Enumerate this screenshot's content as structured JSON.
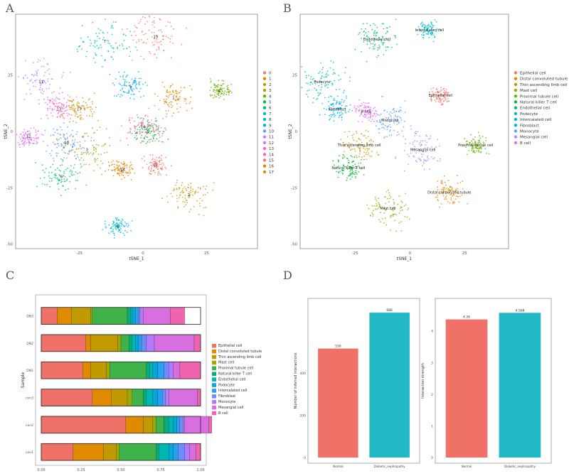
{
  "panel_labels": {
    "a": "A",
    "b": "B",
    "c": "C",
    "d": "D"
  },
  "palette": [
    "#F8766D",
    "#E58700",
    "#C99800",
    "#A3A500",
    "#6BB100",
    "#00BA38",
    "#00BF7D",
    "#00C0AF",
    "#00BCD8",
    "#00B0F6",
    "#619CFF",
    "#B983FF",
    "#E76BF3",
    "#FD61D1",
    "#FF67A4",
    "#F8766D",
    "#E58700",
    "#C99800"
  ],
  "chart_data": [
    {
      "type": "scatter",
      "id": "A",
      "xlabel": "tSNE_1",
      "ylabel": "tSNE_2",
      "xticks": [
        "-25",
        "0",
        "25"
      ],
      "yticks": [
        "25",
        "0",
        "-25",
        "-50"
      ],
      "legend_position": "right",
      "legend": [
        "0",
        "1",
        "2",
        "3",
        "4",
        "5",
        "6",
        "7",
        "8",
        "9",
        "10",
        "11",
        "12",
        "13",
        "14",
        "15",
        "16",
        "17"
      ],
      "cluster_labels": [
        "0",
        "1",
        "2",
        "3",
        "4",
        "5",
        "6",
        "7",
        "8",
        "9",
        "10",
        "11",
        "12",
        "13",
        "14",
        "15",
        "16",
        "17"
      ],
      "cluster_centers": [
        {
          "label": "0",
          "x": 5,
          "y": -15
        },
        {
          "label": "1",
          "x": 12,
          "y": 15
        },
        {
          "label": "2",
          "x": 18,
          "y": -28
        },
        {
          "label": "3",
          "x": -22,
          "y": -8
        },
        {
          "label": "4",
          "x": 30,
          "y": 18
        },
        {
          "label": "5",
          "x": 2,
          "y": 0
        },
        {
          "label": "6",
          "x": -32,
          "y": -20
        },
        {
          "label": "7",
          "x": -15,
          "y": 40
        },
        {
          "label": "8",
          "x": -10,
          "y": -42
        },
        {
          "label": "9",
          "x": -5,
          "y": 20
        },
        {
          "label": "10",
          "x": -30,
          "y": -5
        },
        {
          "label": "11",
          "x": -40,
          "y": 22
        },
        {
          "label": "12",
          "x": -45,
          "y": -2
        },
        {
          "label": "13",
          "x": -33,
          "y": 10
        },
        {
          "label": "14",
          "x": 0,
          "y": 2
        },
        {
          "label": "15",
          "x": 5,
          "y": 42
        },
        {
          "label": "16",
          "x": -8,
          "y": -17
        },
        {
          "label": "17",
          "x": -25,
          "y": 10
        }
      ]
    },
    {
      "type": "scatter",
      "id": "B",
      "xlabel": "tSNE_1",
      "ylabel": "tSNE_2",
      "xticks": [
        "-25",
        "0",
        "25"
      ],
      "yticks": [
        "25",
        "0",
        "-25",
        "-50"
      ],
      "legend_position": "right",
      "legend": [
        "Epithelial cell",
        "Distal convoluted tubule",
        "Thin ascending limb cell",
        "Mast cell",
        "Proximal tubule cell",
        "Natural killer T cell",
        "Endothelial cell",
        "Podocyte",
        "Intercalated cell",
        "Fibroblast",
        "Monocyte",
        "Mesangial cell",
        "B cell"
      ],
      "cell_labels": [
        "Epithelial cell",
        "Distal convoluted tubule",
        "Thin ascending limb cell",
        "Mast cell",
        "Proximal tubule cell",
        "Natural killer T cell",
        "Endothelial cell",
        "Podocyte",
        "Intercalated cell",
        "Fibroblast",
        "Monocyte",
        "Mesangial cell",
        "B cell"
      ],
      "cell_centers": [
        {
          "label": "Epithelial cell",
          "x": 14,
          "y": 16
        },
        {
          "label": "Distal convoluted tubule",
          "x": 18,
          "y": -27
        },
        {
          "label": "Thin ascending limb cell",
          "x": -23,
          "y": -6
        },
        {
          "label": "Mast cell",
          "x": -10,
          "y": -34
        },
        {
          "label": "Proximal tubule cell",
          "x": 30,
          "y": -6
        },
        {
          "label": "Natural killer T cell",
          "x": -28,
          "y": -16
        },
        {
          "label": "Endothelial cell",
          "x": -15,
          "y": 41
        },
        {
          "label": "Podocyte",
          "x": -40,
          "y": 22
        },
        {
          "label": "Intercalated cell",
          "x": 9,
          "y": 45
        },
        {
          "label": "Fibroblast",
          "x": -33,
          "y": 10
        },
        {
          "label": "Monocyte",
          "x": -9,
          "y": 5
        },
        {
          "label": "Mesangial cell",
          "x": 6,
          "y": -8
        },
        {
          "label": "B cell",
          "x": -20,
          "y": 9
        }
      ]
    },
    {
      "type": "bar",
      "id": "C",
      "orientation": "horizontal-stacked",
      "ylabel": "Sample",
      "xticks": [
        "0.00",
        "0.25",
        "0.50",
        "0.75",
        "1.00"
      ],
      "xlim": [
        0,
        1
      ],
      "legend_position": "right",
      "categories": [
        "DN3",
        "DN2",
        "DN1",
        "con3",
        "con2",
        "con1"
      ],
      "legend": [
        "Epithelial cell",
        "Distal convoluted tubule",
        "Thin ascending limb cell",
        "Mast cell",
        "Proximal tubule cell",
        "Natural killer T cell",
        "Endothelial cell",
        "Podocyte",
        "Intercalated cell",
        "Fibroblast",
        "Monocyte",
        "Mesangial cell",
        "B cell"
      ],
      "series_values": [
        [
          0.1,
          0.09,
          0.12,
          0.01,
          0.22,
          0.02,
          0.01,
          0.02,
          0.02,
          0.01,
          0.02,
          0.17,
          0.09
        ],
        [
          0.28,
          0.03,
          0.17,
          0.02,
          0.05,
          0.02,
          0.02,
          0.02,
          0.02,
          0.03,
          0.05,
          0.25,
          0.04
        ],
        [
          0.26,
          0.05,
          0.1,
          0.02,
          0.23,
          0.02,
          0.02,
          0.03,
          0.04,
          0.03,
          0.03,
          0.04,
          0.13
        ],
        [
          0.32,
          0.12,
          0.1,
          0.03,
          0.07,
          0.02,
          0.04,
          0.03,
          0.03,
          0.02,
          0.02,
          0.18,
          0.02
        ],
        [
          0.53,
          0.11,
          0.06,
          0.02,
          0.05,
          0.03,
          0.03,
          0.02,
          0.02,
          0.02,
          0.01,
          0.15,
          0.02
        ],
        [
          0.2,
          0.19,
          0.08,
          0.02,
          0.23,
          0.02,
          0.06,
          0.03,
          0.03,
          0.04,
          0.03,
          0.04,
          0.03
        ]
      ]
    },
    {
      "type": "bar",
      "id": "D-left",
      "ylabel": "Number of inferred interactions",
      "categories": [
        "Normal",
        "Diabetic_nephropathy"
      ],
      "values": [
        516,
        686
      ],
      "data_labels": [
        "516",
        "686"
      ],
      "yticks": [
        "0",
        "200",
        "400"
      ],
      "ylim": [
        0,
        720
      ],
      "colors": [
        "#F07167",
        "#22B8C5"
      ]
    },
    {
      "type": "bar",
      "id": "D-right",
      "ylabel": "Interaction strength",
      "categories": [
        "Normal",
        "Diabetic_nephropathy"
      ],
      "values": [
        4.36,
        4.568
      ],
      "data_labels": [
        "4.36",
        "4.568"
      ],
      "yticks": [
        "0",
        "1",
        "2",
        "3",
        "4"
      ],
      "ylim": [
        0,
        4.8
      ],
      "colors": [
        "#F07167",
        "#22B8C5"
      ]
    }
  ]
}
